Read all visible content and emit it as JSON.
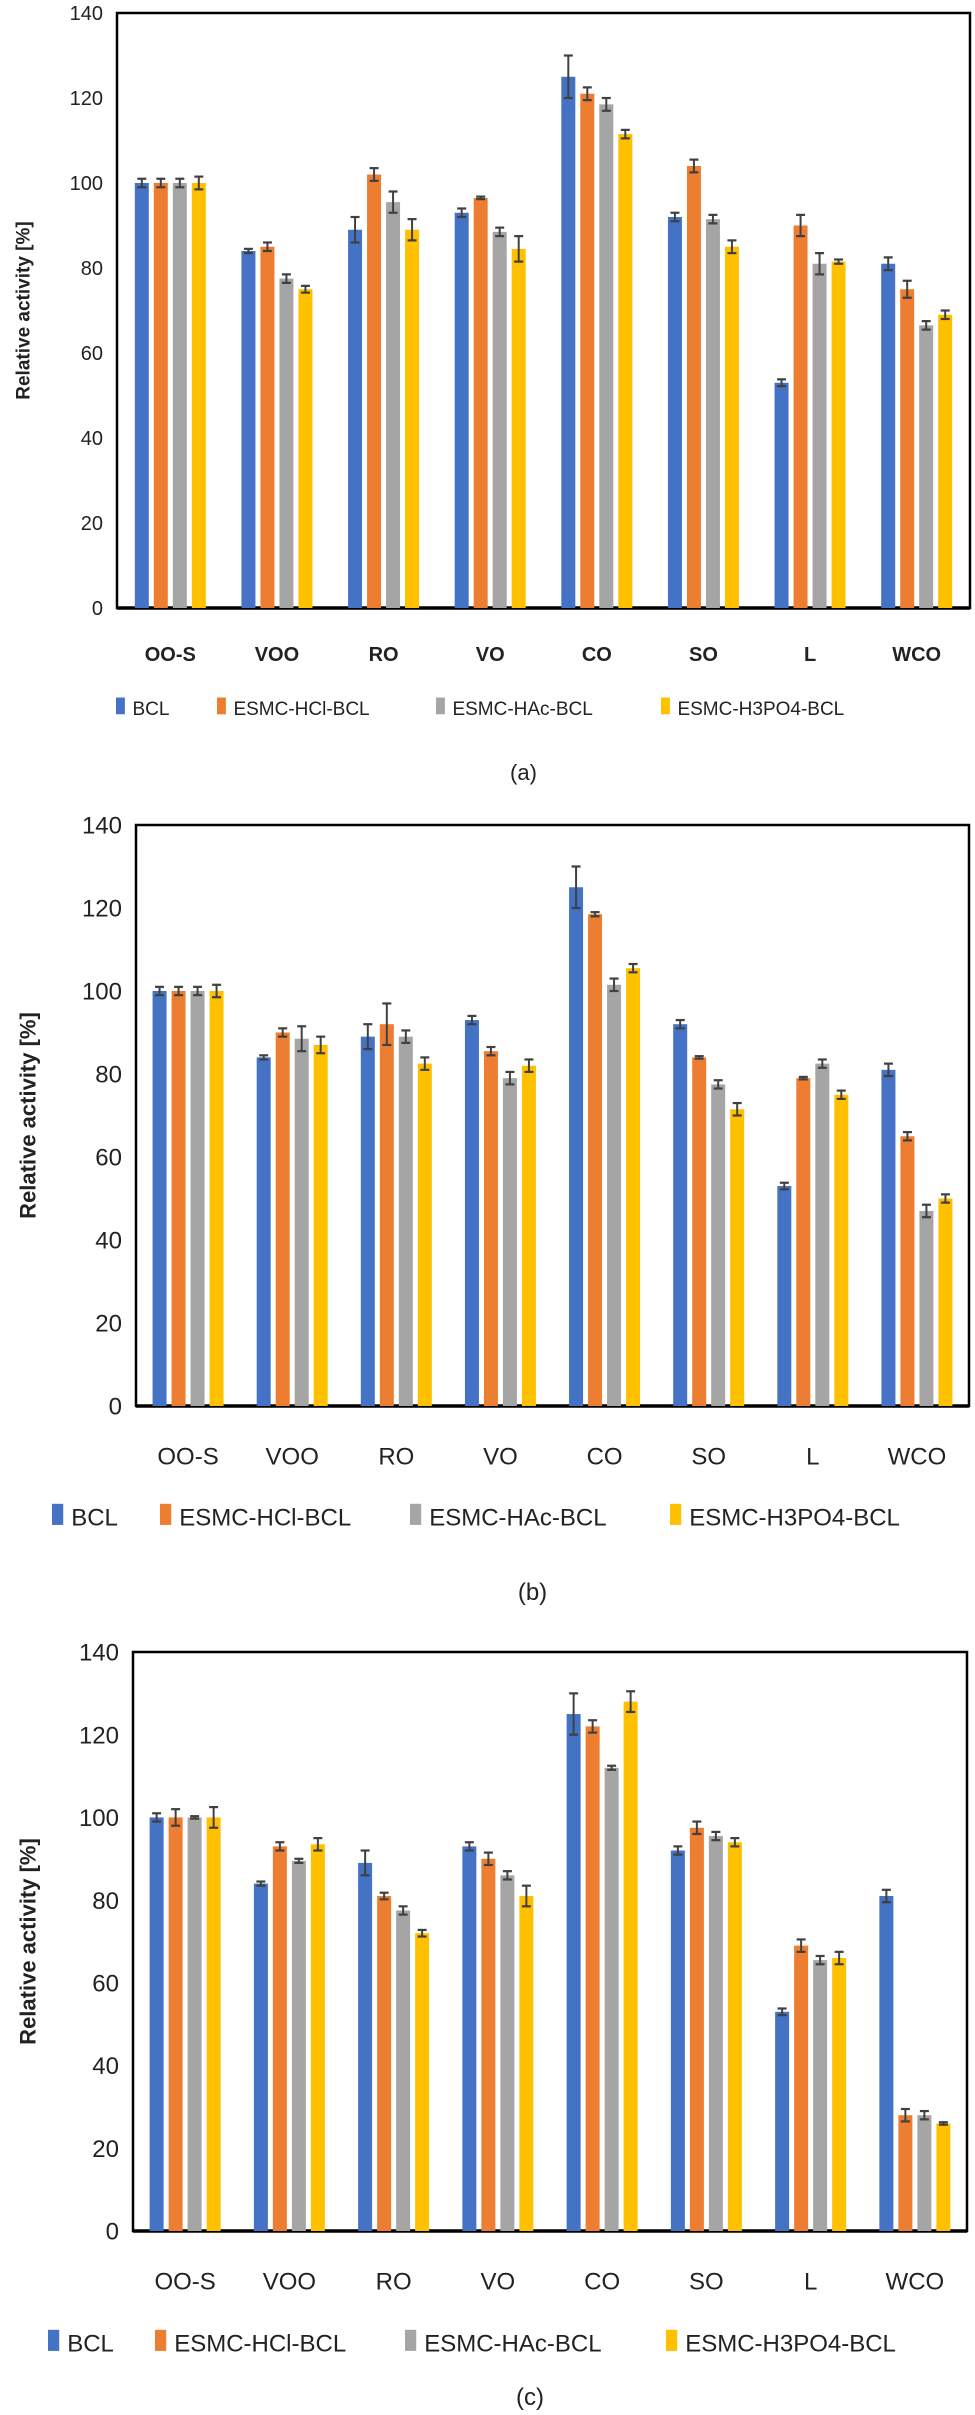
{
  "colors": {
    "BCL": "#4472C4",
    "ESMC-HCl-BCL": "#ED7D31",
    "ESMC-HAc-BCL": "#A5A5A5",
    "ESMC-H3PO4-BCL": "#FFC000",
    "error_bar": "#404040"
  },
  "chart_data": [
    {
      "type": "bar",
      "caption": "(a)",
      "ylabel": "Relative activity [%]",
      "xlabel": "",
      "ylim": [
        0,
        140
      ],
      "yticks": [
        "0",
        "20",
        "40",
        "60",
        "80",
        "100",
        "120",
        "140"
      ],
      "grid": false,
      "legend_position": "bottom",
      "categories": [
        "OO-S",
        "VOO",
        "RO",
        "VO",
        "CO",
        "SO",
        "L",
        "WCO"
      ],
      "series": [
        {
          "name": "BCL",
          "values": [
            100,
            84,
            89,
            93,
            125,
            92,
            53,
            81
          ],
          "errors": [
            1,
            0.5,
            3,
            1,
            5,
            1,
            0.8,
            1.5
          ]
        },
        {
          "name": "ESMC-HCl-BCL",
          "values": [
            100,
            85,
            102,
            96.5,
            121,
            104,
            90,
            75
          ],
          "errors": [
            1,
            1,
            1.5,
            0.3,
            1.5,
            1.5,
            2.5,
            2
          ]
        },
        {
          "name": "ESMC-HAc-BCL",
          "values": [
            100,
            77.5,
            95.5,
            88.5,
            118.5,
            91.5,
            81,
            66.5
          ],
          "errors": [
            1,
            1,
            2.5,
            1,
            1.5,
            1,
            2.5,
            1
          ]
        },
        {
          "name": "ESMC-H3PO4-BCL",
          "values": [
            100,
            75,
            89,
            84.5,
            111.5,
            85,
            81.5,
            69
          ],
          "errors": [
            1.5,
            0.8,
            2.5,
            3,
            1,
            1.5,
            0.5,
            1
          ]
        }
      ]
    },
    {
      "type": "bar",
      "caption": "(b)",
      "ylabel": "Relative activity [%]",
      "xlabel": "",
      "ylim": [
        0,
        140
      ],
      "yticks": [
        "0",
        "20",
        "40",
        "60",
        "80",
        "100",
        "120",
        "140"
      ],
      "grid": false,
      "legend_position": "bottom",
      "categories": [
        "OO-S",
        "VOO",
        "RO",
        "VO",
        "CO",
        "SO",
        "L",
        "WCO"
      ],
      "series": [
        {
          "name": "BCL",
          "values": [
            100,
            84,
            89,
            93,
            125,
            92,
            53,
            81
          ],
          "errors": [
            1,
            0.5,
            3,
            1,
            5,
            1,
            0.8,
            1.5
          ]
        },
        {
          "name": "ESMC-HCl-BCL",
          "values": [
            100,
            90,
            92,
            85.5,
            118.5,
            84,
            79,
            65
          ],
          "errors": [
            1,
            1,
            5,
            1,
            0.5,
            0.3,
            0.3,
            1
          ]
        },
        {
          "name": "ESMC-HAc-BCL",
          "values": [
            100,
            88.5,
            89,
            79,
            101.5,
            77.5,
            82.5,
            47
          ],
          "errors": [
            1,
            3,
            1.5,
            1.5,
            1.5,
            1,
            1,
            1.5
          ]
        },
        {
          "name": "ESMC-H3PO4-BCL",
          "values": [
            100,
            87,
            82.5,
            82,
            105.5,
            71.5,
            75,
            50
          ],
          "errors": [
            1.5,
            2,
            1.5,
            1.5,
            1,
            1.5,
            1,
            1
          ]
        }
      ]
    },
    {
      "type": "bar",
      "caption": "(c)",
      "ylabel": "Relative activity [%]",
      "xlabel": "",
      "ylim": [
        0,
        140
      ],
      "yticks": [
        "0",
        "20",
        "40",
        "60",
        "80",
        "100",
        "120",
        "140"
      ],
      "grid": false,
      "legend_position": "bottom",
      "categories": [
        "OO-S",
        "VOO",
        "RO",
        "VO",
        "CO",
        "SO",
        "L",
        "WCO"
      ],
      "series": [
        {
          "name": "BCL",
          "values": [
            100,
            84,
            89,
            93,
            125,
            92,
            53,
            81
          ],
          "errors": [
            1,
            0.5,
            3,
            1,
            5,
            1,
            0.8,
            1.5
          ]
        },
        {
          "name": "ESMC-HCl-BCL",
          "values": [
            100,
            93,
            81,
            90,
            122,
            97.5,
            69,
            28
          ],
          "errors": [
            2,
            1,
            0.8,
            1.5,
            1.5,
            1.5,
            1.5,
            1.5
          ]
        },
        {
          "name": "ESMC-HAc-BCL",
          "values": [
            100,
            89.5,
            77.5,
            86,
            112,
            95.5,
            65.5,
            28
          ],
          "errors": [
            0.3,
            0.5,
            1,
            1,
            0.5,
            1,
            1,
            1
          ]
        },
        {
          "name": "ESMC-H3PO4-BCL",
          "values": [
            100,
            93.5,
            72,
            81,
            128,
            94,
            66,
            26
          ],
          "errors": [
            2.5,
            1.5,
            0.8,
            2.5,
            2.5,
            1,
            1.5,
            0.3
          ]
        }
      ]
    }
  ]
}
